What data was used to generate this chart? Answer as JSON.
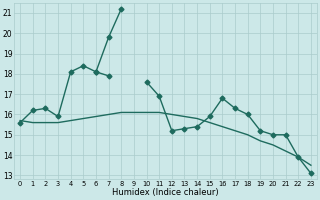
{
  "xlabel": "Humidex (Indice chaleur)",
  "x_values": [
    0,
    1,
    2,
    3,
    4,
    5,
    6,
    7,
    8,
    9,
    10,
    11,
    12,
    13,
    14,
    15,
    16,
    17,
    18,
    19,
    20,
    21,
    22,
    23
  ],
  "line_main": [
    15.6,
    16.2,
    16.3,
    15.9,
    18.1,
    18.4,
    18.1,
    17.9,
    null,
    null,
    17.6,
    16.9,
    15.2,
    15.3,
    15.4,
    15.9,
    16.8,
    16.3,
    16.0,
    15.2,
    15.0,
    15.0,
    13.9,
    13.1
  ],
  "line_spike": [
    null,
    null,
    null,
    null,
    null,
    null,
    18.1,
    19.8,
    21.2,
    null,
    null,
    null,
    null,
    null,
    null,
    null,
    null,
    null,
    null,
    null,
    null,
    null,
    null,
    null
  ],
  "line_trend": [
    15.7,
    15.6,
    15.6,
    15.6,
    15.7,
    15.8,
    15.9,
    16.0,
    16.1,
    16.1,
    16.1,
    16.1,
    16.0,
    15.9,
    15.8,
    15.6,
    15.4,
    15.2,
    15.0,
    14.7,
    14.5,
    14.2,
    13.9,
    13.5
  ],
  "ylim_min": 12.8,
  "ylim_max": 21.5,
  "yticks": [
    13,
    14,
    15,
    16,
    17,
    18,
    19,
    20,
    21
  ],
  "bg_color": "#cce8e8",
  "grid_color": "#aacccc",
  "line_color": "#1e6b5e",
  "line_width": 1.0,
  "marker_size": 2.5
}
